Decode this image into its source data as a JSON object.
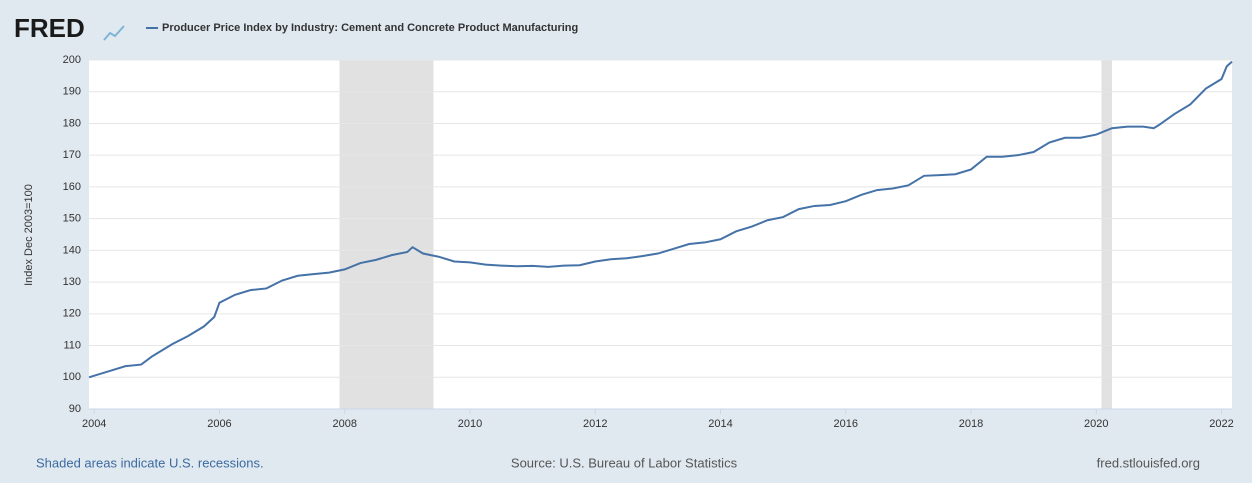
{
  "brand": "FRED",
  "chart_data": {
    "type": "line",
    "series": [
      {
        "name": "Producer Price Index by Industry: Cement and Concrete Product Manufacturing",
        "color": "#4572a7",
        "values": [
          100,
          100.5,
          102,
          103.5,
          104,
          106.5,
          107.5,
          110.5,
          113,
          116,
          119,
          123.5,
          126,
          127.5,
          128,
          130.5,
          132,
          132.5,
          133,
          134,
          136,
          137,
          138.5,
          139.5,
          141,
          139,
          138,
          136.5,
          136.2,
          135.5,
          135.2,
          135,
          135.1,
          134.8,
          135.2,
          135.3,
          136.5,
          137.2,
          137.5,
          138.2,
          139,
          140.5,
          142,
          142.5,
          143.5,
          146,
          147.5,
          149.5,
          150.5,
          153,
          154,
          154.3,
          155.5,
          157.5,
          159,
          159.5,
          160.5,
          163.5,
          163.7,
          164,
          165.5,
          169.5,
          169.5,
          170,
          171,
          174,
          175.5,
          175.5,
          176.5,
          178.5,
          179,
          179,
          178.5,
          179.5,
          183,
          186,
          191,
          194,
          198,
          199.5
        ]
      }
    ],
    "x": [
      2003.917,
      2004.0,
      2004.25,
      2004.5,
      2004.75,
      2004.917,
      2005.0,
      2005.25,
      2005.5,
      2005.75,
      2005.917,
      2006.0,
      2006.25,
      2006.5,
      2006.75,
      2007.0,
      2007.25,
      2007.5,
      2007.75,
      2008.0,
      2008.25,
      2008.5,
      2008.75,
      2009.0,
      2009.083,
      2009.25,
      2009.5,
      2009.75,
      2010.0,
      2010.25,
      2010.5,
      2010.75,
      2011.0,
      2011.25,
      2011.5,
      2011.75,
      2012.0,
      2012.25,
      2012.5,
      2012.75,
      2013.0,
      2013.25,
      2013.5,
      2013.75,
      2014.0,
      2014.25,
      2014.5,
      2014.75,
      2015.0,
      2015.25,
      2015.5,
      2015.75,
      2016.0,
      2016.25,
      2016.5,
      2016.75,
      2017.0,
      2017.25,
      2017.5,
      2017.75,
      2018.0,
      2018.25,
      2018.5,
      2018.75,
      2019.0,
      2019.25,
      2019.5,
      2019.75,
      2020.0,
      2020.25,
      2020.5,
      2020.75,
      2020.917,
      2021.0,
      2021.25,
      2021.5,
      2021.75,
      2022.0,
      2022.083,
      2022.167
    ],
    "recessions": [
      [
        2007.917,
        2009.417
      ],
      [
        2020.083,
        2020.25
      ]
    ],
    "xlim": [
      2003.917,
      2022.167
    ],
    "xticks": [
      2004,
      2006,
      2008,
      2010,
      2012,
      2014,
      2016,
      2018,
      2020,
      2022
    ],
    "ylim": [
      90,
      200
    ],
    "yticks": [
      90,
      100,
      110,
      120,
      130,
      140,
      150,
      160,
      170,
      180,
      190,
      200
    ],
    "ylabel": "Index Dec 2003=100",
    "grid": true,
    "footnote": "Shaded areas indicate U.S. recessions.",
    "source": "Source: U.S. Bureau of Labor Statistics",
    "site": "fred.stlouisfed.org"
  }
}
